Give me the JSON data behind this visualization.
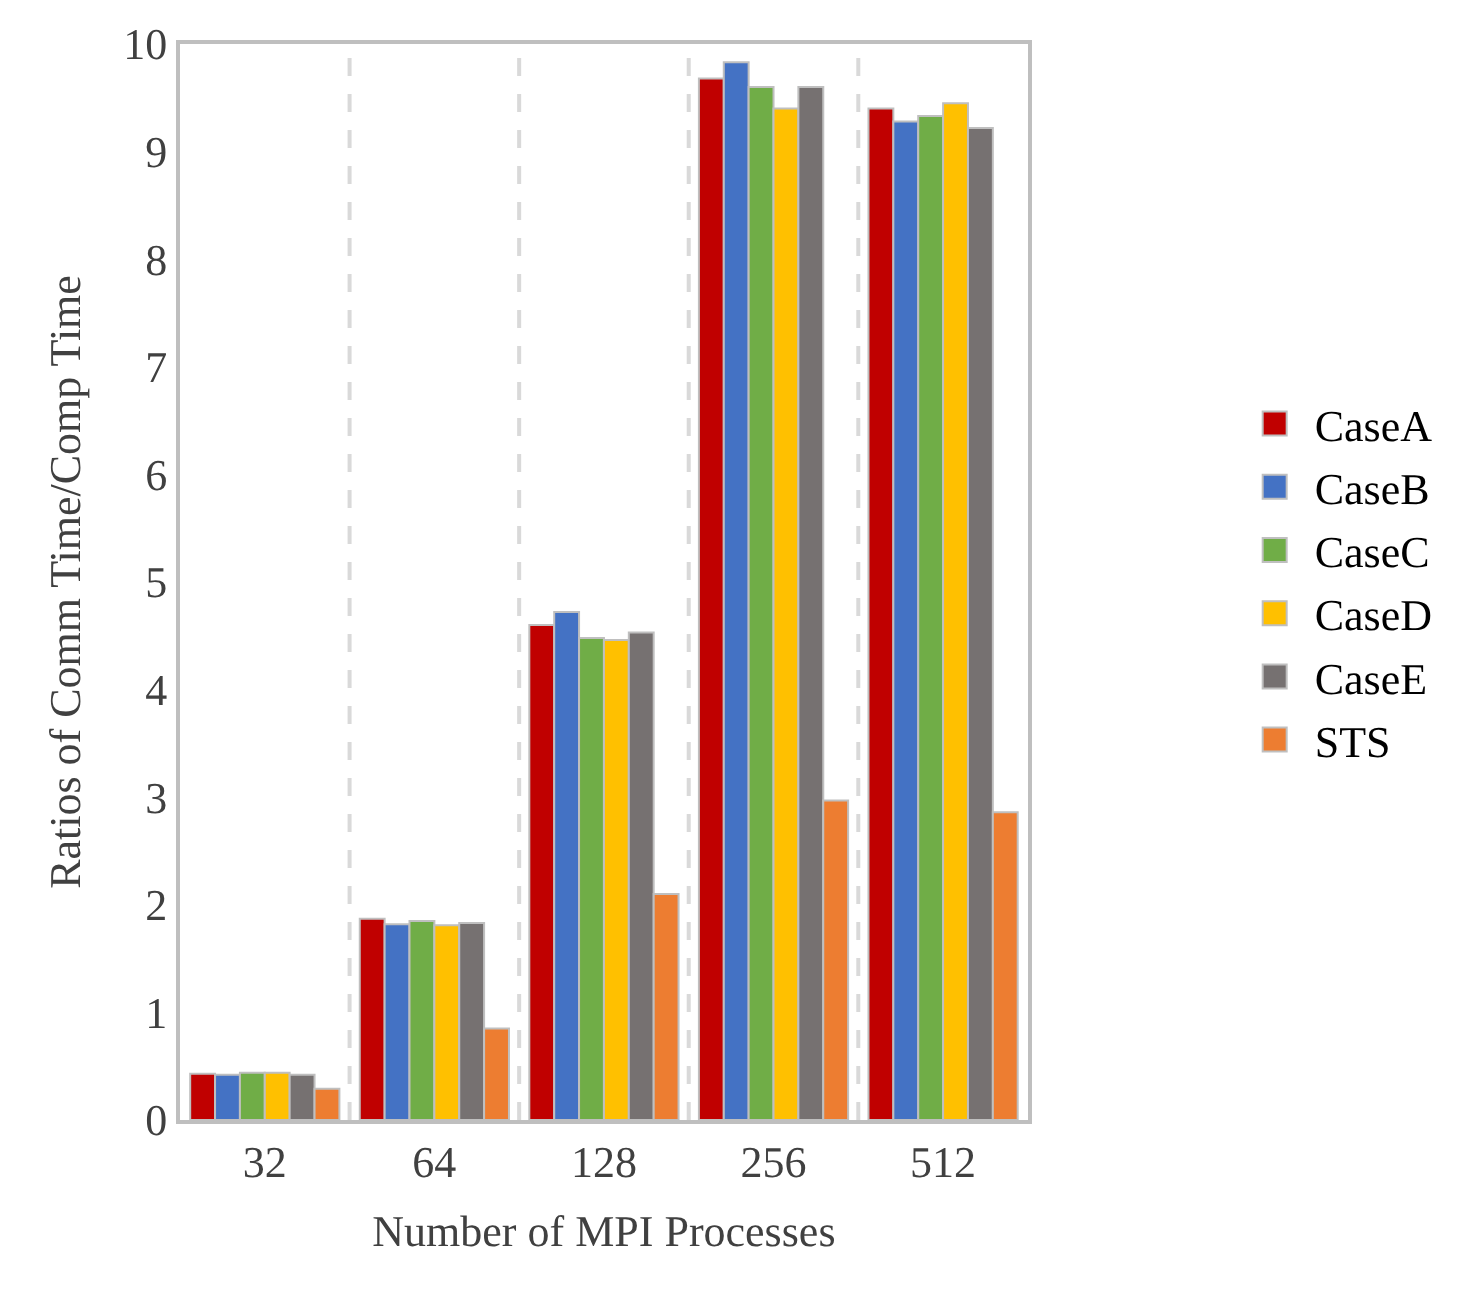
{
  "chart_data": {
    "type": "bar",
    "xlabel": "Number of MPI Processes",
    "ylabel": "Ratios of Comm Time/Comp Time",
    "categories": [
      "32",
      "64",
      "128",
      "256",
      "512"
    ],
    "series": [
      {
        "name": "CaseA",
        "color": "#c00000",
        "values": [
          0.43,
          1.87,
          4.6,
          9.68,
          9.4
        ]
      },
      {
        "name": "CaseB",
        "color": "#4472c4",
        "values": [
          0.42,
          1.82,
          4.72,
          9.83,
          9.28
        ]
      },
      {
        "name": "CaseC",
        "color": "#70ad47",
        "values": [
          0.44,
          1.85,
          4.48,
          9.6,
          9.33
        ]
      },
      {
        "name": "CaseD",
        "color": "#ffc000",
        "values": [
          0.44,
          1.81,
          4.46,
          9.4,
          9.45
        ]
      },
      {
        "name": "CaseE",
        "color": "#767171",
        "values": [
          0.42,
          1.83,
          4.53,
          9.6,
          9.22
        ]
      },
      {
        "name": "STS",
        "color": "#ed7d31",
        "values": [
          0.29,
          0.85,
          2.1,
          2.97,
          2.86
        ]
      }
    ],
    "ylim": [
      0,
      10
    ],
    "yticks": [
      0,
      1,
      2,
      3,
      4,
      5,
      6,
      7,
      8,
      9,
      10
    ],
    "grid": "x",
    "legend": "right"
  }
}
